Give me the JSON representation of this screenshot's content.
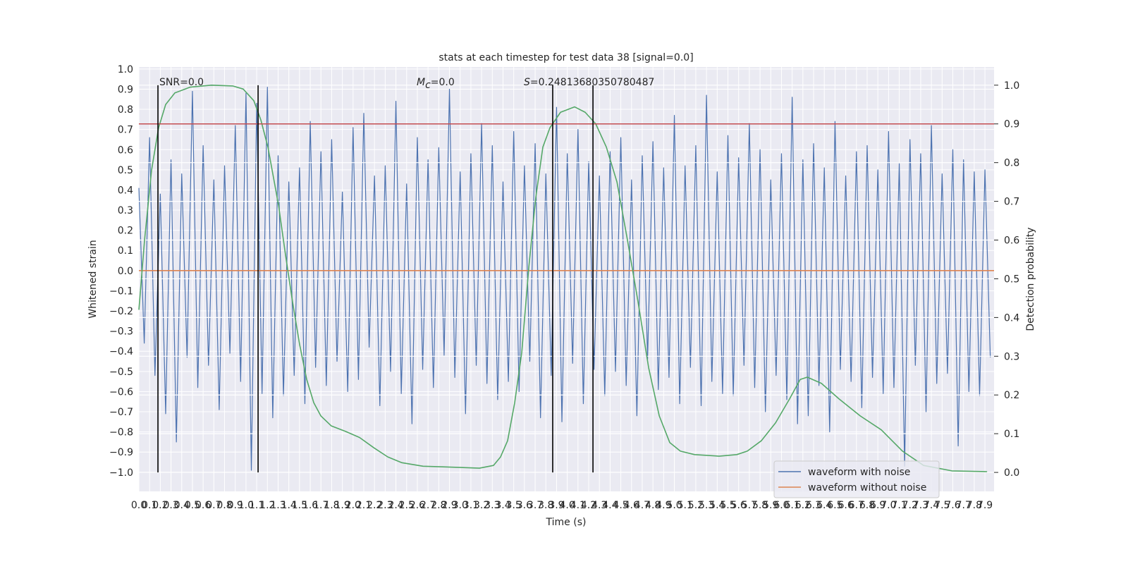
{
  "chart_data": {
    "type": "line",
    "title": "stats at each timestep for test data 38 [signal=0.0]",
    "xlabel": "Time (s)",
    "ylabel": "Whitened strain",
    "y2label": "Detection probability",
    "grid": true,
    "legend": "lower right",
    "xlim": [
      0,
      7.985
    ],
    "ylim": [
      -1.095,
      1.01
    ],
    "y2lim": [
      -0.049,
      1.047
    ],
    "xticks": [
      {
        "value": 0,
        "label": "0.0"
      },
      0.1,
      0.2,
      0.3,
      0.4,
      0.5,
      0.6,
      0.7,
      0.8,
      0.9,
      {
        "value": 1,
        "label": "1.0"
      },
      1.1,
      1.2,
      1.3,
      1.4,
      1.5,
      1.6,
      1.7,
      1.8,
      1.9,
      {
        "value": 2,
        "label": "2.0"
      },
      2.1,
      2.2,
      2.3,
      2.4,
      2.5,
      2.6,
      2.7,
      2.8,
      2.9,
      {
        "value": 3,
        "label": "3.0"
      },
      3.1,
      3.2,
      3.3,
      3.4,
      3.5,
      3.6,
      3.7,
      3.8,
      3.9,
      {
        "value": 4,
        "label": "4.0"
      },
      4.1,
      4.2,
      4.3,
      4.4,
      4.5,
      4.6,
      4.7,
      4.8,
      4.9,
      {
        "value": 5,
        "label": "5.0"
      },
      5.1,
      5.2,
      5.3,
      5.4,
      5.5,
      5.6,
      5.7,
      5.8,
      5.9,
      {
        "value": 6,
        "label": "6.0"
      },
      6.1,
      6.2,
      6.3,
      6.4,
      6.5,
      6.6,
      6.7,
      6.8,
      6.9,
      {
        "value": 7,
        "label": "7.0"
      },
      7.1,
      7.2,
      7.3,
      7.4,
      7.5,
      7.6,
      7.7,
      7.8,
      7.9
    ],
    "yticks": [
      {
        "value": -1.0,
        "label": "−1.0"
      },
      {
        "value": -0.9,
        "label": "−0.9"
      },
      {
        "value": -0.8,
        "label": "−0.8"
      },
      {
        "value": -0.7,
        "label": "−0.7"
      },
      {
        "value": -0.6,
        "label": "−0.6"
      },
      {
        "value": -0.5,
        "label": "−0.5"
      },
      {
        "value": -0.4,
        "label": "−0.4"
      },
      {
        "value": -0.3,
        "label": "−0.3"
      },
      {
        "value": -0.2,
        "label": "−0.2"
      },
      {
        "value": -0.1,
        "label": "−0.1"
      },
      {
        "value": 0,
        "label": "0.0"
      },
      0.1,
      0.2,
      0.3,
      0.4,
      0.5,
      0.6,
      0.7,
      0.8,
      0.9,
      {
        "value": 1,
        "label": "1.0"
      }
    ],
    "y2ticks": [
      {
        "value": 0,
        "label": "0.0"
      },
      0.1,
      0.2,
      0.3,
      0.4,
      0.5,
      0.6,
      0.7,
      0.8,
      0.9,
      {
        "value": 1,
        "label": "1.0"
      }
    ],
    "x": [
      0,
      0.05,
      0.1,
      0.15,
      0.2,
      0.25,
      0.3,
      0.35,
      0.4,
      0.45,
      0.5,
      0.55,
      0.6,
      0.65,
      0.7,
      0.75,
      0.8,
      0.85,
      0.9,
      0.95,
      1,
      1.05,
      1.1,
      1.15,
      1.2,
      1.25,
      1.3,
      1.35,
      1.4,
      1.45,
      1.5,
      1.55,
      1.6,
      1.65,
      1.7,
      1.75,
      1.8,
      1.85,
      1.9,
      1.95,
      2,
      2.05,
      2.1,
      2.15,
      2.2,
      2.25,
      2.3,
      2.35,
      2.4,
      2.45,
      2.5,
      2.55,
      2.6,
      2.65,
      2.7,
      2.75,
      2.8,
      2.85,
      2.9,
      2.95,
      3,
      3.05,
      3.1,
      3.15,
      3.2,
      3.25,
      3.3,
      3.35,
      3.4,
      3.45,
      3.5,
      3.55,
      3.6,
      3.65,
      3.7,
      3.75,
      3.8,
      3.85,
      3.9,
      3.95,
      4,
      4.05,
      4.1,
      4.15,
      4.2,
      4.25,
      4.3,
      4.35,
      4.4,
      4.45,
      4.5,
      4.55,
      4.6,
      4.65,
      4.7,
      4.75,
      4.8,
      4.85,
      4.9,
      4.95,
      5,
      5.05,
      5.1,
      5.15,
      5.2,
      5.25,
      5.3,
      5.35,
      5.4,
      5.45,
      5.5,
      5.55,
      5.6,
      5.65,
      5.7,
      5.75,
      5.8,
      5.85,
      5.9,
      5.95,
      6,
      6.05,
      6.1,
      6.15,
      6.2,
      6.25,
      6.3,
      6.35,
      6.4,
      6.45,
      6.5,
      6.55,
      6.6,
      6.65,
      6.7,
      6.75,
      6.8,
      6.85,
      6.9,
      6.95,
      7,
      7.05,
      7.1,
      7.15,
      7.2,
      7.25,
      7.3,
      7.35,
      7.4,
      7.45,
      7.5,
      7.55,
      7.6,
      7.65,
      7.7,
      7.75,
      7.8,
      7.85,
      7.9,
      7.95
    ],
    "series": [
      {
        "name": "waveform with noise",
        "color": "#4c72b0",
        "values": [
          0.41,
          -0.36,
          0.66,
          -0.52,
          0.38,
          -0.71,
          0.55,
          -0.85,
          0.48,
          -0.43,
          0.89,
          -0.58,
          0.62,
          -0.47,
          0.45,
          -0.69,
          0.52,
          -0.41,
          0.72,
          -0.55,
          0.88,
          -0.99,
          0.83,
          -0.61,
          0.91,
          -0.73,
          0.57,
          -0.62,
          0.44,
          -0.52,
          0.51,
          -0.66,
          0.74,
          -0.48,
          0.59,
          -0.57,
          0.65,
          -0.45,
          0.39,
          -0.6,
          0.71,
          -0.54,
          0.78,
          -0.38,
          0.47,
          -0.67,
          0.52,
          -0.5,
          0.84,
          -0.61,
          0.43,
          -0.76,
          0.66,
          -0.49,
          0.55,
          -0.58,
          0.61,
          -0.42,
          0.9,
          -0.53,
          0.49,
          -0.71,
          0.58,
          -0.47,
          0.73,
          -0.56,
          0.62,
          -0.64,
          0.44,
          -0.55,
          0.69,
          -0.6,
          0.52,
          -0.45,
          0.63,
          -0.73,
          0.48,
          -0.52,
          0.81,
          -0.75,
          0.58,
          -0.46,
          0.7,
          -0.66,
          0.54,
          -0.49,
          0.47,
          -0.62,
          0.59,
          -0.5,
          0.66,
          -0.57,
          0.45,
          -0.72,
          0.57,
          -0.44,
          0.64,
          -0.59,
          0.51,
          -0.53,
          0.77,
          -0.66,
          0.52,
          -0.48,
          0.62,
          -0.67,
          0.87,
          -0.55,
          0.49,
          -0.61,
          0.67,
          -0.62,
          0.56,
          -0.47,
          0.73,
          -0.58,
          0.6,
          -0.7,
          0.45,
          -0.52,
          0.58,
          -0.64,
          0.86,
          -0.76,
          0.55,
          -0.72,
          0.63,
          -0.57,
          0.51,
          -0.8,
          0.74,
          -0.49,
          0.47,
          -0.55,
          0.59,
          -0.68,
          0.62,
          -0.53,
          0.5,
          -0.61,
          0.69,
          -0.58,
          0.53,
          -0.97,
          0.65,
          -0.47,
          0.58,
          -0.7,
          0.72,
          -0.56,
          0.48,
          -0.51,
          0.6,
          -0.87,
          0.55,
          -0.6,
          0.49,
          -0.62,
          0.5,
          -0.43
        ]
      },
      {
        "name": "waveform without noise",
        "color": "#dd8452",
        "x": [
          0,
          7.985
        ],
        "values": [
          0,
          0
        ]
      },
      {
        "color": "#55a868",
        "axis": "y2",
        "x": [
          0,
          0.053,
          0.118,
          0.184,
          0.25,
          0.336,
          0.48,
          0.678,
          0.876,
          0.974,
          1.073,
          1.139,
          1.205,
          1.304,
          1.37,
          1.435,
          1.501,
          1.567,
          1.633,
          1.699,
          1.797,
          1.929,
          2.061,
          2.192,
          2.324,
          2.456,
          2.653,
          2.982,
          3.18,
          3.311,
          3.377,
          3.443,
          3.509,
          3.575,
          3.641,
          3.706,
          3.772,
          3.838,
          3.937,
          4.068,
          4.167,
          4.266,
          4.365,
          4.464,
          4.562,
          4.661,
          4.76,
          4.859,
          4.957,
          5.056,
          5.188,
          5.418,
          5.583,
          5.681,
          5.813,
          5.945,
          6.076,
          6.175,
          6.241,
          6.373,
          6.537,
          6.735,
          6.932,
          7.13,
          7.327,
          7.591,
          7.92
        ],
        "values": [
          0.42,
          0.6,
          0.78,
          0.89,
          0.95,
          0.98,
          0.995,
          1.0,
          0.998,
          0.99,
          0.96,
          0.91,
          0.84,
          0.69,
          0.56,
          0.44,
          0.33,
          0.24,
          0.18,
          0.146,
          0.12,
          0.106,
          0.09,
          0.064,
          0.04,
          0.025,
          0.016,
          0.013,
          0.011,
          0.018,
          0.04,
          0.082,
          0.18,
          0.31,
          0.53,
          0.71,
          0.84,
          0.89,
          0.93,
          0.944,
          0.93,
          0.9,
          0.84,
          0.75,
          0.6,
          0.44,
          0.27,
          0.146,
          0.077,
          0.055,
          0.046,
          0.042,
          0.046,
          0.055,
          0.082,
          0.128,
          0.19,
          0.24,
          0.246,
          0.23,
          0.19,
          0.146,
          0.11,
          0.055,
          0.018,
          0.004,
          0.002
        ]
      }
    ],
    "hline": {
      "y": 0.9,
      "axis": "y2",
      "color": "#c44e52"
    },
    "vlines": [
      {
        "x": 0.178,
        "ymin": 0,
        "ymax": 1
      },
      {
        "x": 1.113,
        "ymin": 0,
        "ymax": 1
      },
      {
        "x": 3.864,
        "ymin": 0,
        "ymax": 1
      },
      {
        "x": 4.24,
        "ymin": 0,
        "ymax": 1
      }
    ],
    "vline_color": "#000000",
    "annotations": [
      {
        "text": "SNR=0.0"
      },
      {
        "symbol": "M",
        "subscript": "c",
        "text": "=0.0"
      },
      {
        "symbol": "S",
        "text": "=0.24813680350780487"
      }
    ]
  }
}
